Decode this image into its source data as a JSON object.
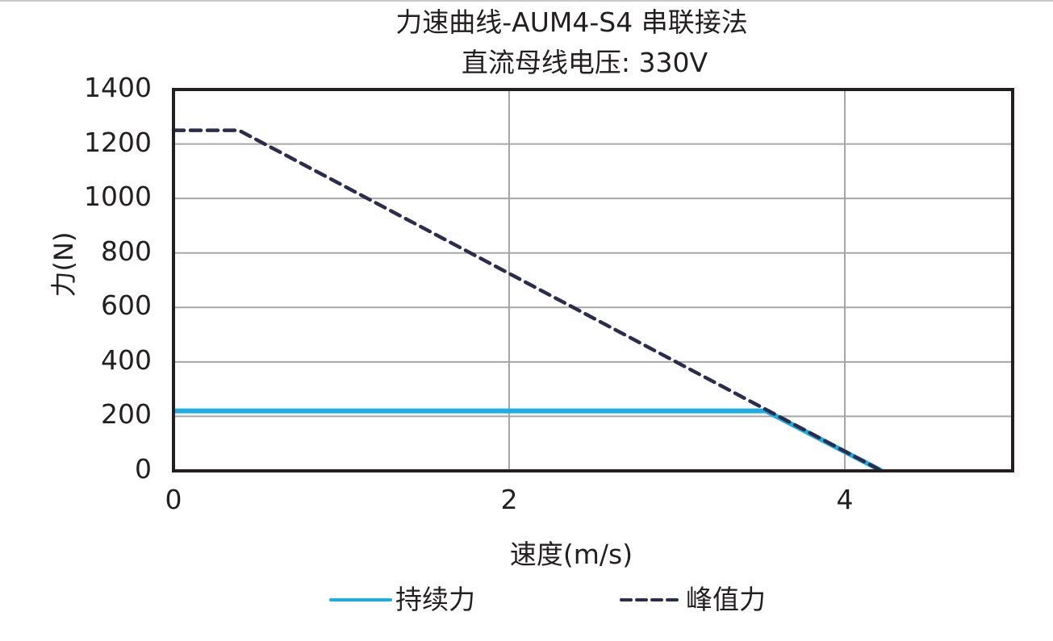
{
  "title_line1": "力速曲线-AUM4-S4 串联接法",
  "title_line2": "直流母线电压: 330V",
  "axes": {
    "xlabel": "速度(m/s)",
    "ylabel": "力(N)",
    "xticks": [
      "0",
      "2",
      "4"
    ],
    "yticks": [
      "1400",
      "1200",
      "1000",
      "800",
      "600",
      "400",
      "200",
      "0"
    ]
  },
  "legend": [
    {
      "label": "持续力",
      "style": "solid",
      "color": "#1BADE3"
    },
    {
      "label": "峰值力",
      "style": "dashed",
      "color": "#2B2D4F"
    }
  ],
  "chart_data": {
    "type": "line",
    "title": "力速曲线-AUM4-S4 串联接法 / 直流母线电压: 330V",
    "xlabel": "速度(m/s)",
    "ylabel": "力(N)",
    "xlim": [
      0,
      5
    ],
    "ylim": [
      0,
      1400
    ],
    "xticks": [
      0,
      2,
      4
    ],
    "yticks": [
      0,
      200,
      400,
      600,
      800,
      1000,
      1200,
      1400
    ],
    "grid": true,
    "legend_position": "bottom",
    "series": [
      {
        "name": "持续力",
        "style": "solid",
        "color": "#1BADE3",
        "x": [
          0,
          3.53,
          4.22
        ],
        "y": [
          220,
          220,
          0
        ]
      },
      {
        "name": "峰值力",
        "style": "dashed",
        "color": "#2B2D4F",
        "x": [
          0,
          0.39,
          4.22
        ],
        "y": [
          1250,
          1250,
          0
        ]
      }
    ]
  }
}
